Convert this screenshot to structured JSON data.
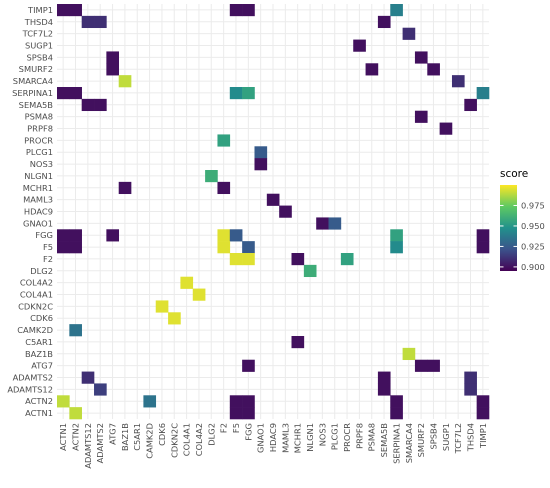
{
  "chart_data": {
    "type": "heatmap",
    "title": "",
    "xlabel": "",
    "ylabel": "",
    "grid": true,
    "legend_position": "right",
    "x_categories": [
      "ACTN1",
      "ACTN2",
      "ADAMTS12",
      "ADAMTS2",
      "ATG7",
      "BAZ1B",
      "C5AR1",
      "CAMK2D",
      "CDK6",
      "CDKN2C",
      "COL4A1",
      "COL4A2",
      "DLG2",
      "F2",
      "F5",
      "FGG",
      "GNAO1",
      "HDAC9",
      "MAML3",
      "MCHR1",
      "NLGN1",
      "NOS3",
      "PLCG1",
      "PROCR",
      "PRPF8",
      "PSMA8",
      "SEMA5B",
      "SERPINA1",
      "SMARCA4",
      "SMURF2",
      "SPSB4",
      "SUGP1",
      "TCF7L2",
      "THSD4",
      "TIMP1"
    ],
    "y_categories": [
      "TIMP1",
      "THSD4",
      "TCF7L2",
      "SUGP1",
      "SPSB4",
      "SMURF2",
      "SMARCA4",
      "SERPINA1",
      "SEMA5B",
      "PSMA8",
      "PRPF8",
      "PROCR",
      "PLCG1",
      "NOS3",
      "NLGN1",
      "MCHR1",
      "MAML3",
      "HDAC9",
      "GNAO1",
      "FGG",
      "F5",
      "F2",
      "DLG2",
      "COL4A2",
      "COL4A1",
      "CDKN2C",
      "CDK6",
      "CAMK2D",
      "C5AR1",
      "BAZ1B",
      "ATG7",
      "ADAMTS2",
      "ADAMTS12",
      "ACTN2",
      "ACTN1"
    ],
    "legend": {
      "title": "score",
      "range": [
        0.895,
        1.0
      ],
      "ticks": [
        0.9,
        0.925,
        0.95,
        0.975
      ],
      "tick_labels": [
        "0.900",
        "0.925",
        "0.950",
        "0.975"
      ]
    },
    "cells": [
      {
        "x": "ACTN1",
        "y": "TIMP1",
        "value": 0.9
      },
      {
        "x": "ACTN2",
        "y": "TIMP1",
        "value": 0.9
      },
      {
        "x": "F5",
        "y": "TIMP1",
        "value": 0.9
      },
      {
        "x": "FGG",
        "y": "TIMP1",
        "value": 0.9
      },
      {
        "x": "SERPINA1",
        "y": "TIMP1",
        "value": 0.94
      },
      {
        "x": "ADAMTS12",
        "y": "THSD4",
        "value": 0.91
      },
      {
        "x": "ADAMTS2",
        "y": "THSD4",
        "value": 0.91
      },
      {
        "x": "SEMA5B",
        "y": "THSD4",
        "value": 0.9
      },
      {
        "x": "SMARCA4",
        "y": "TCF7L2",
        "value": 0.91
      },
      {
        "x": "PRPF8",
        "y": "SUGP1",
        "value": 0.9
      },
      {
        "x": "ATG7",
        "y": "SPSB4",
        "value": 0.9
      },
      {
        "x": "SMURF2",
        "y": "SPSB4",
        "value": 0.9
      },
      {
        "x": "ATG7",
        "y": "SMURF2",
        "value": 0.9
      },
      {
        "x": "PSMA8",
        "y": "SMURF2",
        "value": 0.9
      },
      {
        "x": "SPSB4",
        "y": "SMURF2",
        "value": 0.9
      },
      {
        "x": "BAZ1B",
        "y": "SMARCA4",
        "value": 0.99
      },
      {
        "x": "TCF7L2",
        "y": "SMARCA4",
        "value": 0.91
      },
      {
        "x": "ACTN1",
        "y": "SERPINA1",
        "value": 0.9
      },
      {
        "x": "ACTN2",
        "y": "SERPINA1",
        "value": 0.9
      },
      {
        "x": "F5",
        "y": "SERPINA1",
        "value": 0.945
      },
      {
        "x": "FGG",
        "y": "SERPINA1",
        "value": 0.955
      },
      {
        "x": "TIMP1",
        "y": "SERPINA1",
        "value": 0.94
      },
      {
        "x": "ADAMTS12",
        "y": "SEMA5B",
        "value": 0.9
      },
      {
        "x": "ADAMTS2",
        "y": "SEMA5B",
        "value": 0.9
      },
      {
        "x": "THSD4",
        "y": "SEMA5B",
        "value": 0.9
      },
      {
        "x": "SMURF2",
        "y": "PSMA8",
        "value": 0.9
      },
      {
        "x": "SUGP1",
        "y": "PRPF8",
        "value": 0.9
      },
      {
        "x": "F2",
        "y": "PROCR",
        "value": 0.955
      },
      {
        "x": "GNAO1",
        "y": "PLCG1",
        "value": 0.925
      },
      {
        "x": "GNAO1",
        "y": "NOS3",
        "value": 0.9
      },
      {
        "x": "DLG2",
        "y": "NLGN1",
        "value": 0.96
      },
      {
        "x": "BAZ1B",
        "y": "MCHR1",
        "value": 0.9
      },
      {
        "x": "F2",
        "y": "MCHR1",
        "value": 0.9
      },
      {
        "x": "HDAC9",
        "y": "MAML3",
        "value": 0.9
      },
      {
        "x": "MAML3",
        "y": "HDAC9",
        "value": 0.9
      },
      {
        "x": "NOS3",
        "y": "GNAO1",
        "value": 0.9
      },
      {
        "x": "PLCG1",
        "y": "GNAO1",
        "value": 0.925
      },
      {
        "x": "ACTN1",
        "y": "FGG",
        "value": 0.9
      },
      {
        "x": "ACTN2",
        "y": "FGG",
        "value": 0.9
      },
      {
        "x": "ATG7",
        "y": "FGG",
        "value": 0.9
      },
      {
        "x": "F2",
        "y": "FGG",
        "value": 0.995
      },
      {
        "x": "F5",
        "y": "FGG",
        "value": 0.925
      },
      {
        "x": "SERPINA1",
        "y": "FGG",
        "value": 0.955
      },
      {
        "x": "TIMP1",
        "y": "FGG",
        "value": 0.9
      },
      {
        "x": "ACTN1",
        "y": "F5",
        "value": 0.9
      },
      {
        "x": "ACTN2",
        "y": "F5",
        "value": 0.9
      },
      {
        "x": "F2",
        "y": "F5",
        "value": 0.995
      },
      {
        "x": "FGG",
        "y": "F5",
        "value": 0.925
      },
      {
        "x": "SERPINA1",
        "y": "F5",
        "value": 0.945
      },
      {
        "x": "TIMP1",
        "y": "F5",
        "value": 0.9
      },
      {
        "x": "F5",
        "y": "F2",
        "value": 0.995
      },
      {
        "x": "FGG",
        "y": "F2",
        "value": 0.995
      },
      {
        "x": "MCHR1",
        "y": "F2",
        "value": 0.9
      },
      {
        "x": "PROCR",
        "y": "F2",
        "value": 0.955
      },
      {
        "x": "NLGN1",
        "y": "DLG2",
        "value": 0.96
      },
      {
        "x": "COL4A1",
        "y": "COL4A2",
        "value": 0.995
      },
      {
        "x": "COL4A2",
        "y": "COL4A1",
        "value": 0.995
      },
      {
        "x": "CDK6",
        "y": "CDKN2C",
        "value": 0.995
      },
      {
        "x": "CDKN2C",
        "y": "CDK6",
        "value": 0.995
      },
      {
        "x": "ACTN2",
        "y": "CAMK2D",
        "value": 0.935
      },
      {
        "x": "MCHR1",
        "y": "C5AR1",
        "value": 0.9
      },
      {
        "x": "SMARCA4",
        "y": "BAZ1B",
        "value": 0.99
      },
      {
        "x": "FGG",
        "y": "ATG7",
        "value": 0.9
      },
      {
        "x": "SMURF2",
        "y": "ATG7",
        "value": 0.9
      },
      {
        "x": "SPSB4",
        "y": "ATG7",
        "value": 0.9
      },
      {
        "x": "ADAMTS12",
        "y": "ADAMTS2",
        "value": 0.91
      },
      {
        "x": "SEMA5B",
        "y": "ADAMTS2",
        "value": 0.9
      },
      {
        "x": "THSD4",
        "y": "ADAMTS2",
        "value": 0.91
      },
      {
        "x": "ADAMTS2",
        "y": "ADAMTS12",
        "value": 0.915
      },
      {
        "x": "SEMA5B",
        "y": "ADAMTS12",
        "value": 0.9
      },
      {
        "x": "THSD4",
        "y": "ADAMTS12",
        "value": 0.91
      },
      {
        "x": "ACTN1",
        "y": "ACTN2",
        "value": 0.99
      },
      {
        "x": "CAMK2D",
        "y": "ACTN2",
        "value": 0.935
      },
      {
        "x": "F5",
        "y": "ACTN2",
        "value": 0.9
      },
      {
        "x": "FGG",
        "y": "ACTN2",
        "value": 0.9
      },
      {
        "x": "SERPINA1",
        "y": "ACTN2",
        "value": 0.9
      },
      {
        "x": "TIMP1",
        "y": "ACTN2",
        "value": 0.9
      },
      {
        "x": "ACTN2",
        "y": "ACTN1",
        "value": 0.99
      },
      {
        "x": "F5",
        "y": "ACTN1",
        "value": 0.9
      },
      {
        "x": "FGG",
        "y": "ACTN1",
        "value": 0.9
      },
      {
        "x": "SERPINA1",
        "y": "ACTN1",
        "value": 0.9
      },
      {
        "x": "TIMP1",
        "y": "ACTN1",
        "value": 0.9
      }
    ]
  }
}
